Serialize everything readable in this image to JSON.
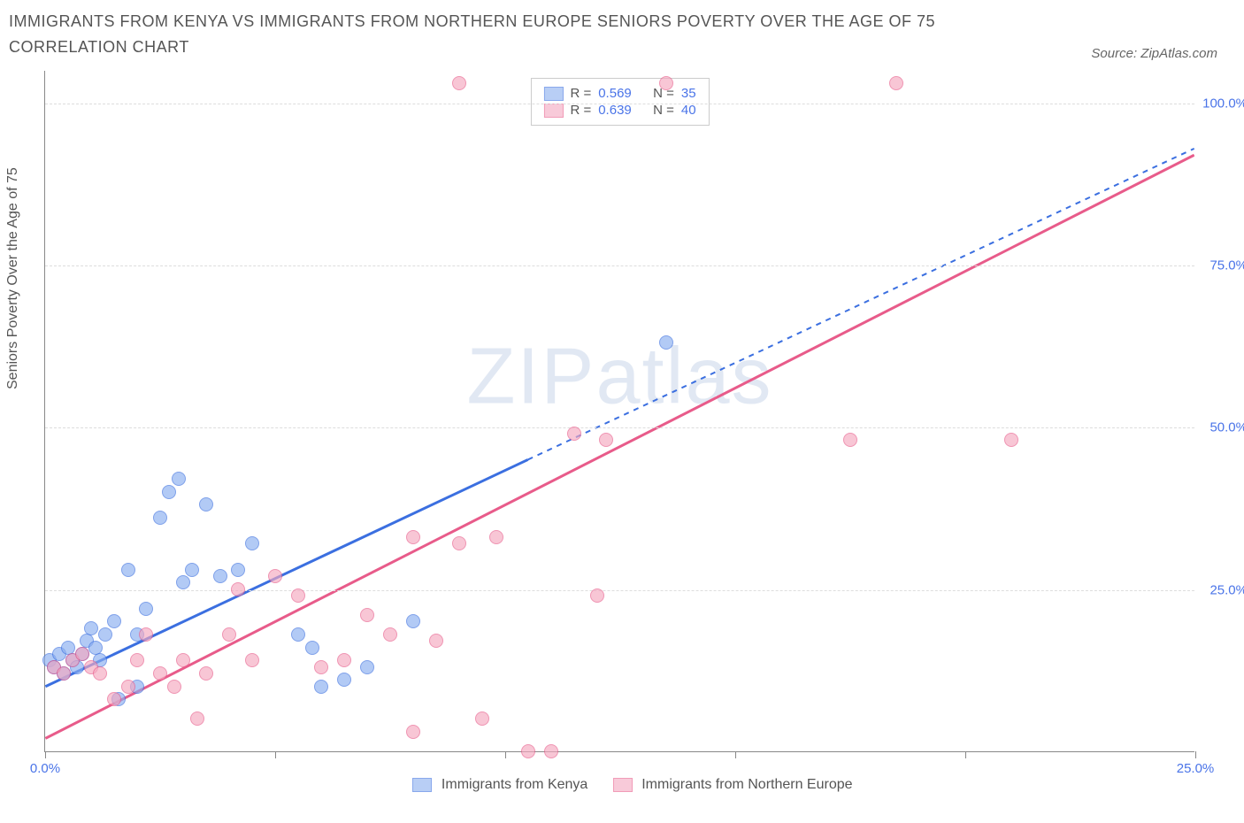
{
  "title": "IMMIGRANTS FROM KENYA VS IMMIGRANTS FROM NORTHERN EUROPE SENIORS POVERTY OVER THE AGE OF 75 CORRELATION CHART",
  "source_label": "Source:",
  "source_name": "ZipAtlas.com",
  "y_axis_label": "Seniors Poverty Over the Age of 75",
  "watermark_bold": "ZIP",
  "watermark_light": "atlas",
  "chart": {
    "type": "scatter",
    "xlim": [
      0,
      25
    ],
    "ylim": [
      0,
      105
    ],
    "x_ticks": [
      0,
      5,
      10,
      15,
      20,
      25
    ],
    "x_tick_labels": [
      "0.0%",
      "",
      "",
      "",
      "",
      "25.0%"
    ],
    "y_ticks": [
      25,
      50,
      75,
      100
    ],
    "y_tick_labels": [
      "25.0%",
      "50.0%",
      "75.0%",
      "100.0%"
    ],
    "grid_color": "#dddddd",
    "axis_color": "#888888",
    "background_color": "#ffffff",
    "marker_radius": 8,
    "marker_stroke_width": 1.5,
    "marker_fill_opacity": 0.35
  },
  "series": [
    {
      "name": "Immigrants from Kenya",
      "color_stroke": "#3b6fe0",
      "color_fill": "#8aaef0",
      "R_label": "R =",
      "R": "0.569",
      "N_label": "N =",
      "N": "35",
      "trend": {
        "x1": 0,
        "y1": 10,
        "x2": 10.5,
        "y2": 45,
        "dash_x2": 25,
        "dash_y2": 93
      },
      "points": [
        [
          0.1,
          14
        ],
        [
          0.2,
          13
        ],
        [
          0.3,
          15
        ],
        [
          0.4,
          12
        ],
        [
          0.5,
          16
        ],
        [
          0.6,
          14
        ],
        [
          0.7,
          13
        ],
        [
          0.8,
          15
        ],
        [
          0.9,
          17
        ],
        [
          1.0,
          19
        ],
        [
          1.1,
          16
        ],
        [
          1.2,
          14
        ],
        [
          1.3,
          18
        ],
        [
          1.5,
          20
        ],
        [
          1.8,
          28
        ],
        [
          2.0,
          18
        ],
        [
          2.2,
          22
        ],
        [
          2.5,
          36
        ],
        [
          2.7,
          40
        ],
        [
          2.9,
          42
        ],
        [
          3.0,
          26
        ],
        [
          3.2,
          28
        ],
        [
          3.5,
          38
        ],
        [
          3.8,
          27
        ],
        [
          4.2,
          28
        ],
        [
          4.5,
          32
        ],
        [
          5.5,
          18
        ],
        [
          5.8,
          16
        ],
        [
          6.0,
          10
        ],
        [
          6.5,
          11
        ],
        [
          7.0,
          13
        ],
        [
          8.0,
          20
        ],
        [
          2.0,
          10
        ],
        [
          1.6,
          8
        ],
        [
          13.5,
          63
        ]
      ]
    },
    {
      "name": "Immigrants from Northern Europe",
      "color_stroke": "#e85b8a",
      "color_fill": "#f5a8c0",
      "R_label": "R =",
      "R": "0.639",
      "N_label": "N =",
      "N": "40",
      "trend": {
        "x1": 0,
        "y1": 2,
        "x2": 25,
        "y2": 92,
        "dash_x2": 25,
        "dash_y2": 92
      },
      "points": [
        [
          0.2,
          13
        ],
        [
          0.4,
          12
        ],
        [
          0.6,
          14
        ],
        [
          0.8,
          15
        ],
        [
          1.0,
          13
        ],
        [
          1.2,
          12
        ],
        [
          1.5,
          8
        ],
        [
          1.8,
          10
        ],
        [
          2.0,
          14
        ],
        [
          2.2,
          18
        ],
        [
          2.5,
          12
        ],
        [
          2.8,
          10
        ],
        [
          3.0,
          14
        ],
        [
          3.3,
          5
        ],
        [
          3.5,
          12
        ],
        [
          4.0,
          18
        ],
        [
          4.2,
          25
        ],
        [
          4.5,
          14
        ],
        [
          5.0,
          27
        ],
        [
          5.5,
          24
        ],
        [
          6.0,
          13
        ],
        [
          6.5,
          14
        ],
        [
          7.0,
          21
        ],
        [
          7.5,
          18
        ],
        [
          8.0,
          33
        ],
        [
          8.5,
          17
        ],
        [
          9.0,
          32
        ],
        [
          9.5,
          5
        ],
        [
          9.8,
          33
        ],
        [
          10.5,
          0
        ],
        [
          11.0,
          0
        ],
        [
          11.5,
          49
        ],
        [
          12.0,
          24
        ],
        [
          12.2,
          48
        ],
        [
          13.5,
          103
        ],
        [
          17.5,
          48
        ],
        [
          18.5,
          103
        ],
        [
          21.0,
          48
        ],
        [
          8.0,
          3
        ],
        [
          9.0,
          103
        ]
      ]
    }
  ],
  "bottom_legend": {
    "series1": "Immigrants from Kenya",
    "series2": "Immigrants from Northern Europe"
  }
}
